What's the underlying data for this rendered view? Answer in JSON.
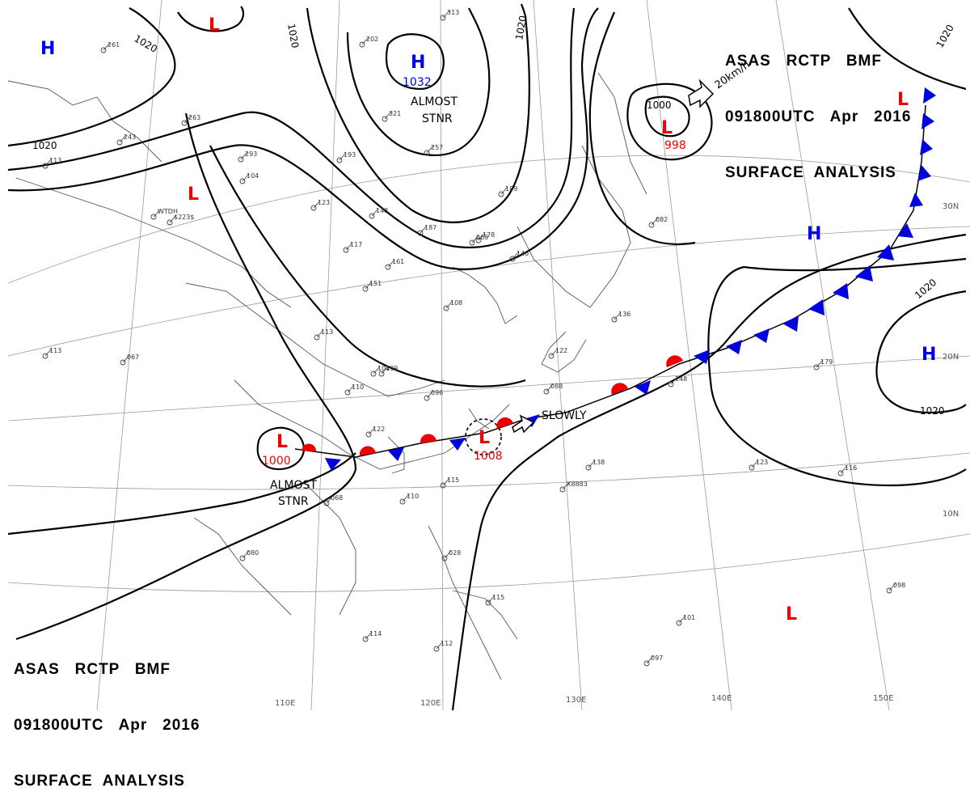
{
  "header_top": {
    "line1": "ASAS   RCTP   BMF",
    "line2": "091800UTC   Apr   2016",
    "line3": "SURFACE  ANALYSIS"
  },
  "header_bottom": {
    "line1": "ASAS   RCTP   BMF",
    "line2": "091800UTC   Apr   2016",
    "line3": "SURFACE  ANALYSIS"
  },
  "pressure_centers": [
    {
      "id": "h-nw",
      "type": "H"
    },
    {
      "id": "l-top",
      "type": "L"
    },
    {
      "id": "h-1032",
      "type": "H",
      "value": "1032",
      "note1": "ALMOST",
      "note2": "STNR"
    },
    {
      "id": "l-998",
      "type": "L",
      "value": "998",
      "motion": "20km/h"
    },
    {
      "id": "l-china",
      "type": "L"
    },
    {
      "id": "l-ne",
      "type": "L"
    },
    {
      "id": "h-pacific",
      "type": "H"
    },
    {
      "id": "h-east",
      "type": "H"
    },
    {
      "id": "l-1000",
      "type": "L",
      "value": "1000",
      "note1": "ALMOST",
      "note2": "STNR"
    },
    {
      "id": "l-1008",
      "type": "L",
      "value": "1008",
      "motion": "SLOWLY"
    },
    {
      "id": "l-south",
      "type": "L"
    }
  ],
  "isobar_labels": [
    "1020",
    "1020",
    "1020",
    "1020",
    "1020",
    "1000",
    "1020",
    "1020"
  ],
  "lat_labels": [
    "30N",
    "20N",
    "10N"
  ],
  "lon_labels": [
    "110E",
    "120E",
    "130E",
    "140E",
    "150E"
  ],
  "station_labels": [
    "261",
    "243",
    "113",
    "263",
    "293",
    "104",
    "193",
    "202",
    "313",
    "321",
    "257",
    "189",
    "187",
    "178",
    "161",
    "146",
    "123",
    "148",
    "117",
    "151",
    "113",
    "139",
    "108",
    "104",
    "122",
    "096",
    "110",
    "136",
    "122",
    "088",
    "179",
    "148",
    "138",
    "123",
    "115",
    "110",
    "068",
    "080",
    "114",
    "112",
    "101",
    "097",
    "098",
    "113",
    "067",
    "069",
    "028",
    "115",
    "082",
    "116",
    "X8883",
    "WTDH",
    "$223$"
  ],
  "colors": {
    "high": "#0000dd",
    "low": "#ee0000",
    "isobar": "#000000",
    "cold_front": "#0000dd",
    "warm_front": "#ee0000",
    "grid": "#888888",
    "coast": "#555555"
  }
}
